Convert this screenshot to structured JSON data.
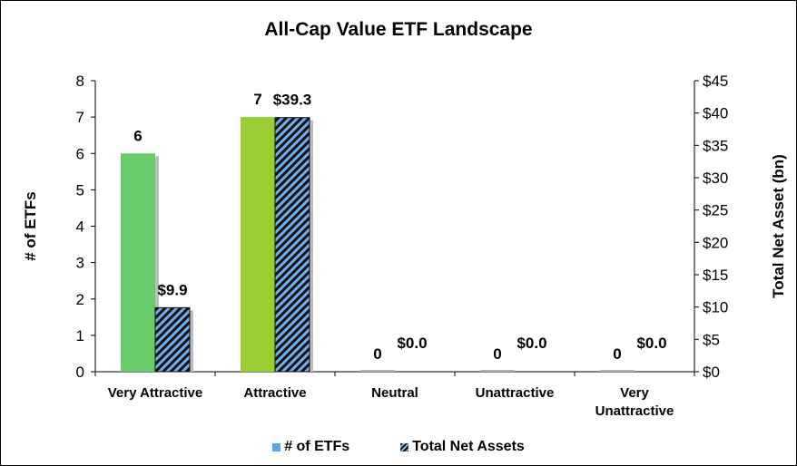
{
  "chart_data": {
    "type": "bar",
    "title": "All-Cap Value ETF Landscape",
    "categories": [
      [
        "Very Attractive"
      ],
      [
        "Attractive"
      ],
      [
        "Neutral"
      ],
      [
        "Unattractive"
      ],
      [
        "Very",
        "Unattractive"
      ]
    ],
    "series": [
      {
        "name": "# of ETFs",
        "axis": "left",
        "values": [
          6,
          7,
          0,
          0,
          0
        ],
        "labels": [
          "6",
          "7",
          "0",
          "0",
          "0"
        ],
        "colors": [
          "#6acb6a",
          "#9acd32",
          "#b0b0b0",
          "#b0b0b0",
          "#b0b0b0"
        ]
      },
      {
        "name": "Total Net Assets",
        "axis": "right",
        "values": [
          9.9,
          39.3,
          0.0,
          0.0,
          0.0
        ],
        "labels": [
          "$9.9",
          "$39.3",
          "$0.0",
          "$0.0",
          "$0.0"
        ],
        "pattern": "diagonal-hatch",
        "colors": [
          "#6fb0f0",
          "#111111"
        ]
      }
    ],
    "ylabel": "# of ETFs",
    "ylim": [
      0,
      8
    ],
    "yticks": [
      "0",
      "1",
      "2",
      "3",
      "4",
      "5",
      "6",
      "7",
      "8"
    ],
    "y2label": "Total Net Asset (bn)",
    "y2lim": [
      0,
      45
    ],
    "y2ticks": [
      "$0",
      "$5",
      "$10",
      "$15",
      "$20",
      "$25",
      "$30",
      "$35",
      "$40",
      "$45"
    ],
    "legend": {
      "position": "bottom",
      "entries": [
        "# of ETFs",
        "Total Net Assets"
      ]
    },
    "grid": false
  }
}
